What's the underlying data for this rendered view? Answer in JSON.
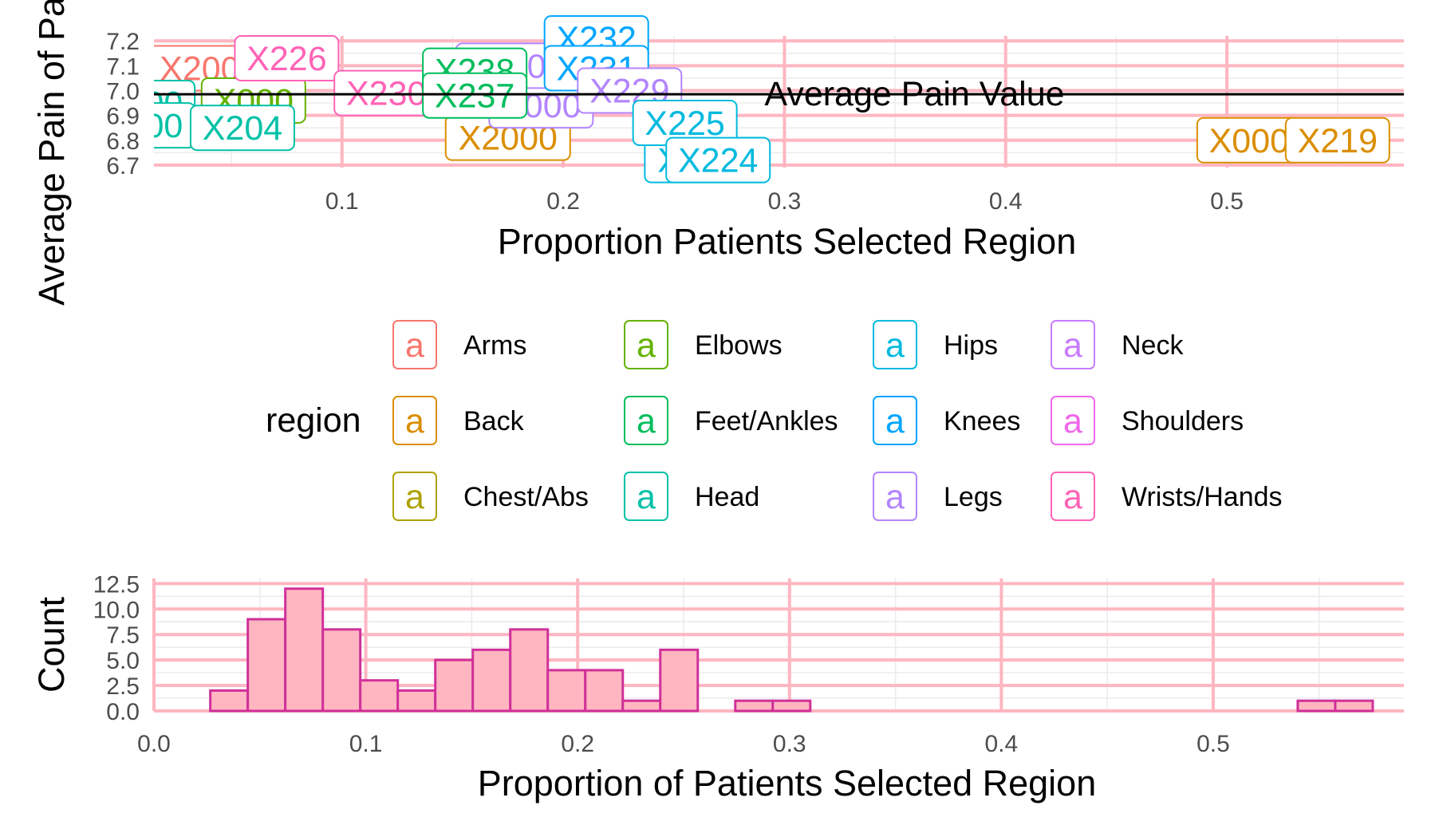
{
  "chart_data": [
    {
      "type": "scatter",
      "subtype": "labelled-points",
      "ylabel": "Average Pain of Pa",
      "xlabel": "Proportion Patients Selected Region",
      "xlim": [
        0.015,
        0.58
      ],
      "ylim": [
        6.69,
        7.22
      ],
      "x_ticks": [
        0.1,
        0.2,
        0.3,
        0.4,
        0.5
      ],
      "x_tick_labels": [
        "0.1",
        "0.2",
        "0.3",
        "0.4",
        "0.5"
      ],
      "y_ticks": [
        6.7,
        6.8,
        6.9,
        7.0,
        7.1,
        7.2
      ],
      "y_tick_labels": [
        "6.7",
        "6.8",
        "6.9",
        "7.0",
        "7.1",
        "7.2"
      ],
      "grid": true,
      "reference_line": {
        "y": 6.985,
        "label": "Average Pain Value",
        "label_x": 0.3
      },
      "legend": {
        "title": "region",
        "position": "bottom",
        "key_glyph": "a",
        "entries": [
          {
            "name": "Arms",
            "color": "#F8766D"
          },
          {
            "name": "Back",
            "color": "#DB8E00"
          },
          {
            "name": "Chest/Abs",
            "color": "#AEA200"
          },
          {
            "name": "Elbows",
            "color": "#64B200"
          },
          {
            "name": "Feet/Ankles",
            "color": "#00BD5C"
          },
          {
            "name": "Head",
            "color": "#00C1A7"
          },
          {
            "name": "Hips",
            "color": "#00BADE"
          },
          {
            "name": "Knees",
            "color": "#00A6FF"
          },
          {
            "name": "Legs",
            "color": "#B385FF"
          },
          {
            "name": "Neck",
            "color": "#C77CFF"
          },
          {
            "name": "Shoulders",
            "color": "#EF67EB"
          },
          {
            "name": "Wrists/Hands",
            "color": "#FF63B6"
          }
        ]
      },
      "points": [
        {
          "label": "X204",
          "region": "Head",
          "x": 0.055,
          "y": 6.85
        },
        {
          "label": "X226",
          "region": "Wrists/Hands",
          "x": 0.075,
          "y": 7.13
        },
        {
          "label": "X230",
          "region": "Wrists/Hands",
          "x": 0.12,
          "y": 6.99
        },
        {
          "label": "X238",
          "region": "Feet/Ankles",
          "x": 0.16,
          "y": 7.08
        },
        {
          "label": "X237",
          "region": "Feet/Ankles",
          "x": 0.16,
          "y": 6.98
        },
        {
          "label": "X232",
          "region": "Knees",
          "x": 0.215,
          "y": 7.21
        },
        {
          "label": "X231",
          "region": "Knees",
          "x": 0.215,
          "y": 7.09
        },
        {
          "label": "X229",
          "region": "Legs",
          "x": 0.23,
          "y": 7.0
        },
        {
          "label": "X225",
          "region": "Hips",
          "x": 0.255,
          "y": 6.87
        },
        {
          "label": "X224",
          "region": "Hips",
          "x": 0.27,
          "y": 6.72
        },
        {
          "label": "X219",
          "region": "Back",
          "x": 0.55,
          "y": 6.8
        }
      ],
      "clipped_points": [
        {
          "label_partial": "X2",
          "region": "Arms",
          "x": 0.04,
          "y": 7.09
        },
        {
          "label_partial": "X",
          "region": "Head",
          "x": 0.01,
          "y": 6.95
        },
        {
          "label_partial": "X",
          "region": "Head",
          "x": 0.01,
          "y": 6.86
        },
        {
          "label_partial": "X",
          "region": "Elbows",
          "x": 0.06,
          "y": 6.96
        },
        {
          "label_partial": "X2",
          "region": "Back",
          "x": 0.175,
          "y": 6.81
        },
        {
          "label_partial": "X2",
          "region": "Hips",
          "x": 0.265,
          "y": 6.72
        },
        {
          "label_partial": "X",
          "region": "Back",
          "x": 0.51,
          "y": 6.8
        },
        {
          "label_partial": "X",
          "region": "Legs",
          "x": 0.19,
          "y": 6.94
        },
        {
          "label_partial": "4",
          "region": "Legs",
          "x": 0.175,
          "y": 7.1
        }
      ]
    },
    {
      "type": "bar",
      "subtype": "histogram",
      "xlabel": "Proportion of Patients Selected Region",
      "ylabel": "Count",
      "xlim": [
        0.0,
        0.59
      ],
      "ylim": [
        0,
        13
      ],
      "x_ticks": [
        0.0,
        0.1,
        0.2,
        0.3,
        0.4,
        0.5
      ],
      "x_tick_labels": [
        "0.0",
        "0.1",
        "0.2",
        "0.3",
        "0.4",
        "0.5"
      ],
      "y_ticks": [
        0.0,
        2.5,
        5.0,
        7.5,
        10.0,
        12.5
      ],
      "y_tick_labels": [
        "0.0",
        "2.5",
        "5.0",
        "7.5",
        "10.0",
        "12.5"
      ],
      "grid": true,
      "fill": "#FFB6C1",
      "stroke": "#D0309A",
      "bin_width": 0.0177,
      "bin_start": 0.0266,
      "values": [
        2,
        9,
        12,
        8,
        3,
        2,
        5,
        6,
        8,
        4,
        4,
        1,
        6,
        0,
        1,
        1,
        0,
        0,
        0,
        0,
        0,
        0,
        0,
        0,
        0,
        0,
        0,
        0,
        0,
        1,
        1
      ]
    }
  ]
}
